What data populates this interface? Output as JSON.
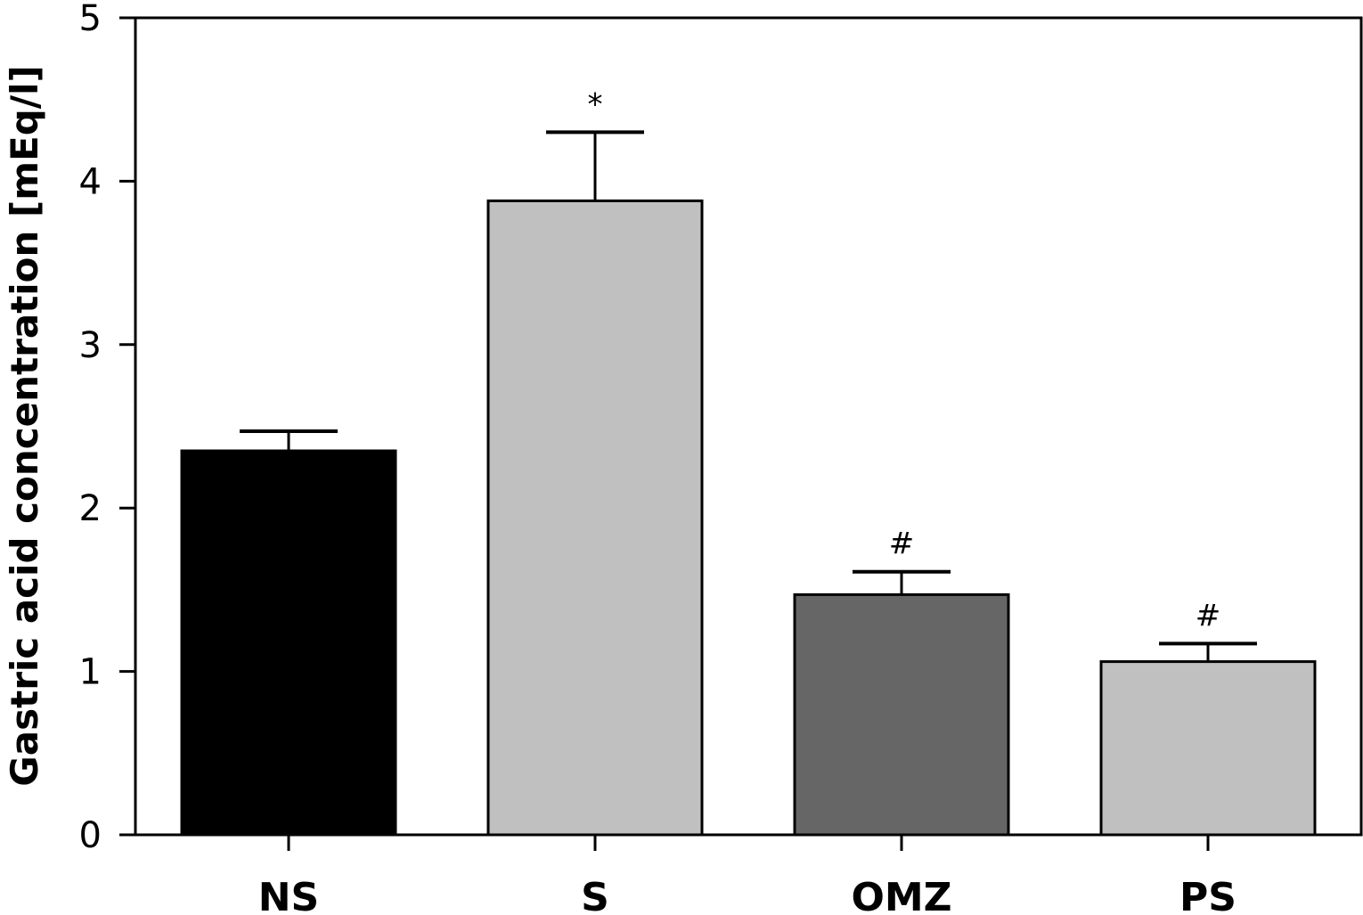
{
  "chart_data": {
    "type": "bar",
    "title": "",
    "xlabel": "",
    "ylabel": "Gastric acid concentration [mEq/l]",
    "ylim": [
      0,
      5
    ],
    "yticks": [
      "0",
      "1",
      "2",
      "3",
      "4",
      "5"
    ],
    "grid": false,
    "categories": [
      "NS",
      "S",
      "OMZ",
      "PS"
    ],
    "values": [
      2.35,
      3.88,
      1.47,
      1.06
    ],
    "errors": [
      0.12,
      0.42,
      0.14,
      0.11
    ],
    "annotations": [
      "",
      "*",
      "#",
      "#"
    ],
    "colors": [
      "#000000",
      "#c0c0c0",
      "#666666",
      "#c0c0c0"
    ]
  }
}
